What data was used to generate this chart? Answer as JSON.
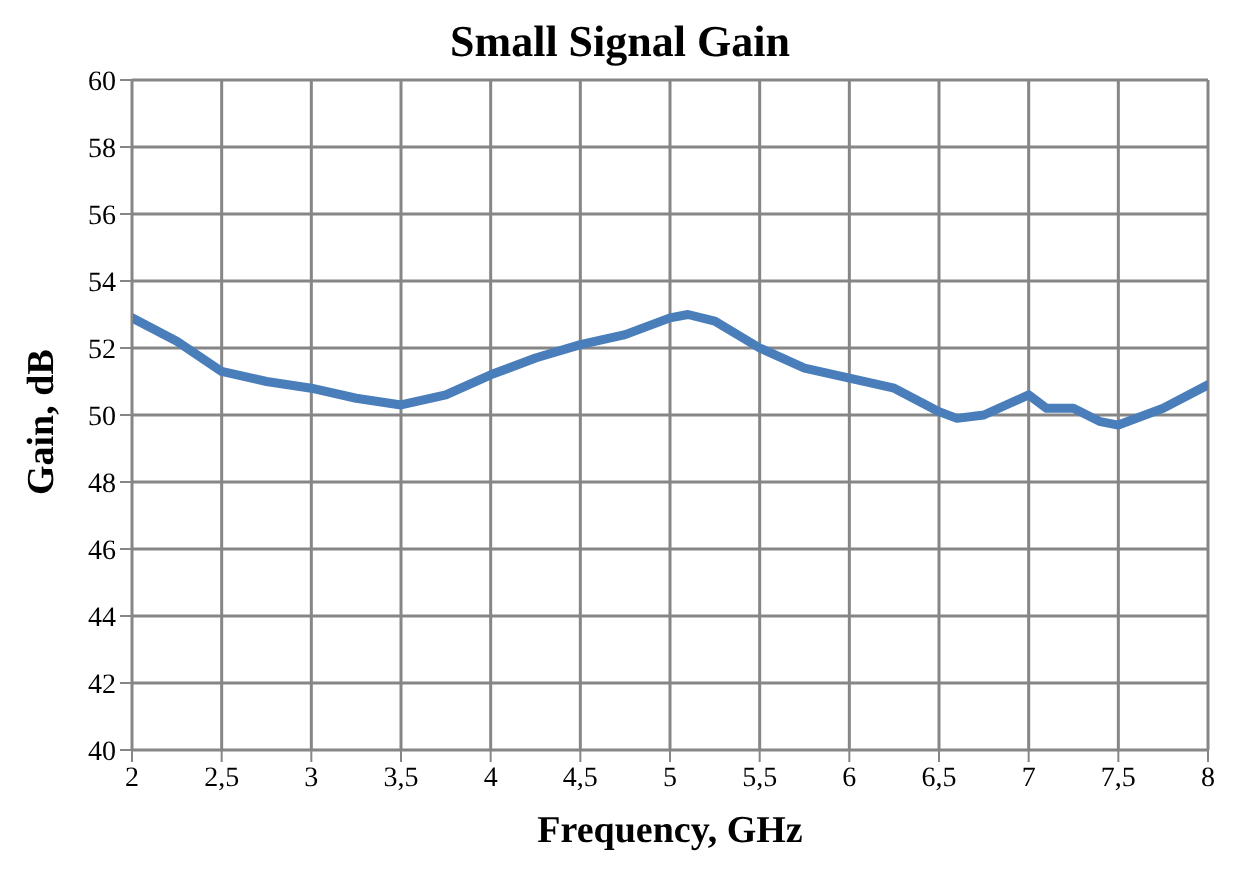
{
  "chart_data": {
    "type": "line",
    "title": "Small Signal Gain",
    "xlabel": "Frequency, GHz",
    "ylabel": "Gain, dB",
    "x": [
      2,
      2.25,
      2.5,
      2.75,
      3,
      3.25,
      3.5,
      3.75,
      4,
      4.25,
      4.5,
      4.75,
      5,
      5.1,
      5.25,
      5.5,
      5.75,
      6,
      6.25,
      6.5,
      6.6,
      6.75,
      7,
      7.1,
      7.25,
      7.4,
      7.5,
      7.75,
      8
    ],
    "series": [
      {
        "color": "#4a7ebb",
        "values": [
          52.9,
          52.2,
          51.3,
          51.0,
          50.8,
          50.5,
          50.3,
          50.6,
          51.2,
          51.7,
          52.1,
          52.4,
          52.9,
          53.0,
          52.8,
          52.0,
          51.4,
          51.1,
          50.8,
          50.1,
          49.9,
          50.0,
          50.6,
          50.2,
          50.2,
          49.8,
          49.7,
          50.2,
          50.9
        ]
      }
    ],
    "xlim": [
      2,
      8
    ],
    "xticks": [
      2,
      {
        "value": 2.5,
        "label": "2,5"
      },
      3,
      {
        "value": 3.5,
        "label": "3,5"
      },
      4,
      {
        "value": 4.5,
        "label": "4,5"
      },
      5,
      {
        "value": 5.5,
        "label": "5,5"
      },
      6,
      {
        "value": 6.5,
        "label": "6,5"
      },
      7,
      {
        "value": 7.5,
        "label": "7,5"
      },
      8
    ],
    "ylim": [
      40,
      60
    ],
    "yticks": [
      40,
      42,
      44,
      46,
      48,
      50,
      52,
      54,
      56,
      58,
      60
    ],
    "grid": true,
    "legend": false,
    "marker": "none",
    "line_style": "solid"
  }
}
